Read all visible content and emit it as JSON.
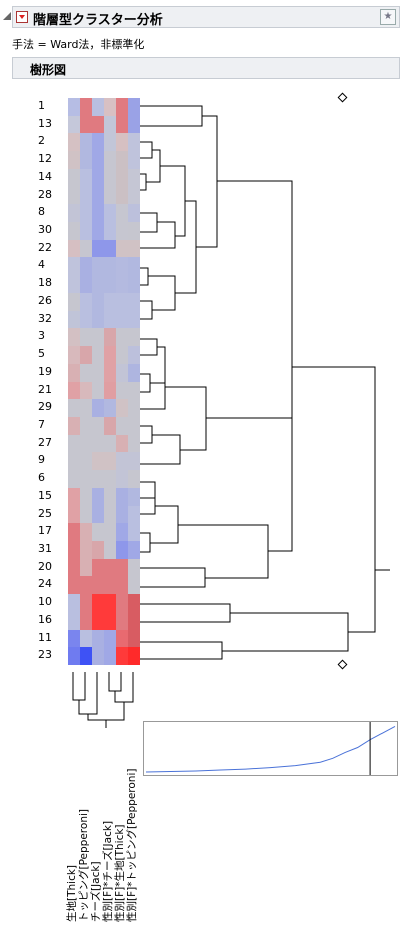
{
  "report": {
    "title": "階層型クラスター分析",
    "method_line": "手法 = Ward法，非標準化",
    "dendrogram_title": "樹形図"
  },
  "rows": [
    "1",
    "13",
    "2",
    "12",
    "14",
    "28",
    "8",
    "30",
    "22",
    "4",
    "18",
    "26",
    "32",
    "3",
    "5",
    "19",
    "21",
    "29",
    "7",
    "27",
    "9",
    "6",
    "15",
    "25",
    "17",
    "31",
    "20",
    "24",
    "10",
    "16",
    "11",
    "23"
  ],
  "columns": [
    "生地[Thick]",
    "トッピング[Pepperoni]",
    "チーズ[Jack]",
    "性別[F]*チーズ[Jack]",
    "性別[F]*生地[Thick]",
    "性別[F]*トッピング[Pepperoni]"
  ],
  "heatmap_colors": [
    [
      "#b6bde4",
      "#e07a80",
      "#b9bfe0",
      "#d8c0c3",
      "#e07a80",
      "#9aa2e6"
    ],
    [
      "#c5c8da",
      "#e07a80",
      "#e07a80",
      "#c2c6d8",
      "#e07a80",
      "#9aa2e6"
    ],
    [
      "#d5c1c3",
      "#b1b8e0",
      "#a0a8e6",
      "#c2c6d8",
      "#d6c0c2",
      "#bfc3dc"
    ],
    [
      "#d0c2c5",
      "#b1b8e0",
      "#a0a8e6",
      "#c6c6d0",
      "#cbc0c4",
      "#bfc3dc"
    ],
    [
      "#c6c6cf",
      "#b9bfe0",
      "#a0a8e6",
      "#c6c6d0",
      "#cbc0c4",
      "#c5c6d4"
    ],
    [
      "#c6c6cf",
      "#b9bfe0",
      "#a0a8e6",
      "#c6c6d0",
      "#cbc0c4",
      "#c5c6d4"
    ],
    [
      "#c2c4d6",
      "#b9bfe0",
      "#a0a8e6",
      "#b9bfe0",
      "#c6c6d0",
      "#bcc0dc"
    ],
    [
      "#c6c6cf",
      "#b9bfe0",
      "#a0a8e6",
      "#b9bfe0",
      "#c6c6d0",
      "#c6c6cf"
    ],
    [
      "#d6bfc2",
      "#c6c6d0",
      "#8e97ea",
      "#8e97ea",
      "#d0c2c5",
      "#d0c2c5"
    ],
    [
      "#bfc3dc",
      "#a9b0e2",
      "#b1b8e0",
      "#b1b8e0",
      "#b4bae0",
      "#b1b8e0"
    ],
    [
      "#bfc3dc",
      "#a9b0e2",
      "#b1b8e0",
      "#b1b8e0",
      "#b4bae0",
      "#b1b8e0"
    ],
    [
      "#c6c6cf",
      "#b9bfe0",
      "#b1b8e0",
      "#b9bfe0",
      "#b9bfe0",
      "#b9bfe0"
    ],
    [
      "#c0c4d8",
      "#b9bfe0",
      "#b1b8e0",
      "#b9bfe0",
      "#b9bfe0",
      "#b9bfe0"
    ],
    [
      "#d3c0c3",
      "#c6c6cf",
      "#c6c6cf",
      "#d8a6aa",
      "#c6c6cf",
      "#c6c6cf"
    ],
    [
      "#d8b9bc",
      "#d8a6aa",
      "#c6c6cf",
      "#e0a1a5",
      "#c6c6cf",
      "#bcc0dc"
    ],
    [
      "#d8b0b3",
      "#c6c6cf",
      "#c6c6cf",
      "#e0a1a5",
      "#c2c4d6",
      "#aeb5e0"
    ],
    [
      "#e0a1a5",
      "#d8b9bc",
      "#c6c6cf",
      "#e09ea2",
      "#c6c6cf",
      "#c6c6cf"
    ],
    [
      "#c6c6cf",
      "#c6c6cf",
      "#a9b0e2",
      "#b1b8e0",
      "#d0c2c5",
      "#c6c6cf"
    ],
    [
      "#d8b0b3",
      "#c6c6cf",
      "#c6c6cf",
      "#d8a6aa",
      "#c6c6cf",
      "#c6c6cf"
    ],
    [
      "#c6c6cf",
      "#c6c6cf",
      "#c6c6cf",
      "#c6c6cf",
      "#d8b0b3",
      "#c6c6cf"
    ],
    [
      "#c6c6cf",
      "#c6c6cf",
      "#d0c2c5",
      "#d0c2c5",
      "#c2c4d6",
      "#c2c4d6"
    ],
    [
      "#c6c6cf",
      "#c6c6cf",
      "#c6c6cf",
      "#c6c6cf",
      "#c2c4d6",
      "#c6c6cf"
    ],
    [
      "#e0a1a5",
      "#c6c6cf",
      "#a9b0e2",
      "#c6c6cf",
      "#a9b0e2",
      "#b1b8e0"
    ],
    [
      "#e0a1a5",
      "#c6c6cf",
      "#a9b0e2",
      "#c6c6cf",
      "#a9b0e2",
      "#b9bfe0"
    ],
    [
      "#e07a80",
      "#d8b0b3",
      "#c6c6cf",
      "#c6c6cf",
      "#a0a8e6",
      "#b9bfe0"
    ],
    [
      "#e07a80",
      "#d8b0b3",
      "#d8a6aa",
      "#c6c6cf",
      "#8e97ea",
      "#a0a8e6"
    ],
    [
      "#e07a80",
      "#d8b0b3",
      "#e07a80",
      "#e07a80",
      "#e07a80",
      "#c6c6cf"
    ],
    [
      "#e07a80",
      "#e07a80",
      "#e07a80",
      "#e07a80",
      "#e07a80",
      "#c6c6cf"
    ],
    [
      "#b9bfe0",
      "#e07a80",
      "#ff3a3a",
      "#ff3a3a",
      "#e07a80",
      "#d85c62"
    ],
    [
      "#b9bfe0",
      "#e07a80",
      "#ff3a3a",
      "#ff3a3a",
      "#e07a80",
      "#d85c62"
    ],
    [
      "#7a85ee",
      "#b9bfe0",
      "#a9b0e2",
      "#a0a8e6",
      "#e86a70",
      "#d85c62"
    ],
    [
      "#6f7bf0",
      "#3e52f5",
      "#a9b0e2",
      "#a0a8e6",
      "#ff3a3a",
      "#ff2a2a"
    ]
  ],
  "distance_plot": {
    "type": "line",
    "points": [
      [
        0,
        0.02
      ],
      [
        0.1,
        0.03
      ],
      [
        0.2,
        0.04
      ],
      [
        0.3,
        0.06
      ],
      [
        0.4,
        0.08
      ],
      [
        0.5,
        0.11
      ],
      [
        0.6,
        0.15
      ],
      [
        0.7,
        0.22
      ],
      [
        0.75,
        0.3
      ],
      [
        0.8,
        0.42
      ],
      [
        0.85,
        0.52
      ],
      [
        0.9,
        0.68
      ],
      [
        1.0,
        0.95
      ]
    ],
    "cut_marker": 0.9,
    "colors": {
      "line": "#4a72d8",
      "marker": "#000000"
    }
  }
}
